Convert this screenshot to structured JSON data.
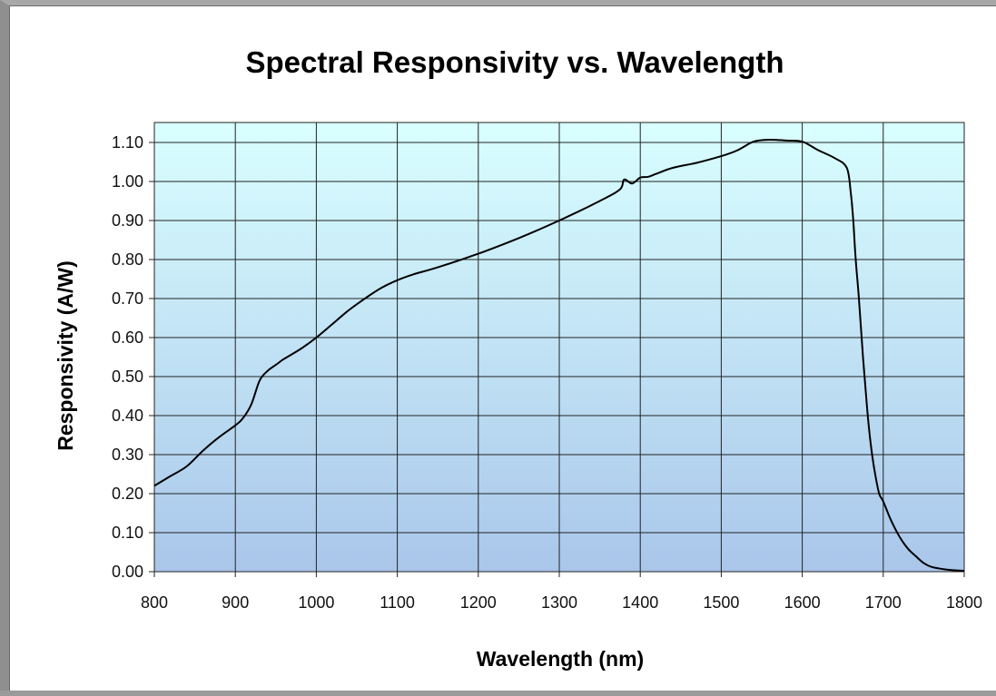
{
  "chart_data": {
    "type": "line",
    "title": "Spectral Responsivity vs. Wavelength",
    "xlabel": "Wavelength (nm)",
    "ylabel": "Responsivity (A/W)",
    "xlim": [
      800,
      1800
    ],
    "ylim": [
      0,
      1.15
    ],
    "x_ticks": [
      800,
      900,
      1000,
      1100,
      1200,
      1300,
      1400,
      1500,
      1600,
      1700,
      1800
    ],
    "y_ticks": [
      0.0,
      0.1,
      0.2,
      0.3,
      0.4,
      0.5,
      0.6,
      0.7,
      0.8,
      0.9,
      1.0,
      1.1
    ],
    "y_tick_labels": [
      "0.00",
      "0.10",
      "0.20",
      "0.30",
      "0.40",
      "0.50",
      "0.60",
      "0.70",
      "0.80",
      "0.90",
      "1.00",
      "1.10"
    ],
    "grid": true,
    "legend": "none",
    "background_gradient": [
      "#d9ffff",
      "#a9c6ea"
    ],
    "line_color": "#000000",
    "series": [
      {
        "x": [
          800,
          820,
          840,
          860,
          880,
          900,
          910,
          920,
          930,
          940,
          950,
          960,
          980,
          1000,
          1020,
          1040,
          1060,
          1080,
          1100,
          1120,
          1150,
          1200,
          1250,
          1300,
          1350,
          1375,
          1380,
          1390,
          1400,
          1410,
          1420,
          1440,
          1470,
          1500,
          1520,
          1540,
          1560,
          1580,
          1600,
          1620,
          1640,
          1655,
          1660,
          1663,
          1666,
          1670,
          1675,
          1680,
          1685,
          1690,
          1695,
          1700,
          1710,
          1720,
          1730,
          1740,
          1750,
          1760,
          1780,
          1800
        ],
        "y": [
          0.22,
          0.245,
          0.27,
          0.31,
          0.345,
          0.375,
          0.395,
          0.43,
          0.49,
          0.515,
          0.53,
          0.545,
          0.57,
          0.6,
          0.635,
          0.67,
          0.7,
          0.727,
          0.747,
          0.762,
          0.78,
          0.815,
          0.855,
          0.9,
          0.95,
          0.98,
          1.005,
          0.995,
          1.01,
          1.012,
          1.02,
          1.035,
          1.048,
          1.065,
          1.08,
          1.102,
          1.107,
          1.105,
          1.102,
          1.08,
          1.06,
          1.035,
          0.97,
          0.9,
          0.8,
          0.7,
          0.55,
          0.42,
          0.32,
          0.25,
          0.2,
          0.18,
          0.13,
          0.09,
          0.06,
          0.04,
          0.022,
          0.012,
          0.005,
          0.002
        ]
      }
    ]
  }
}
